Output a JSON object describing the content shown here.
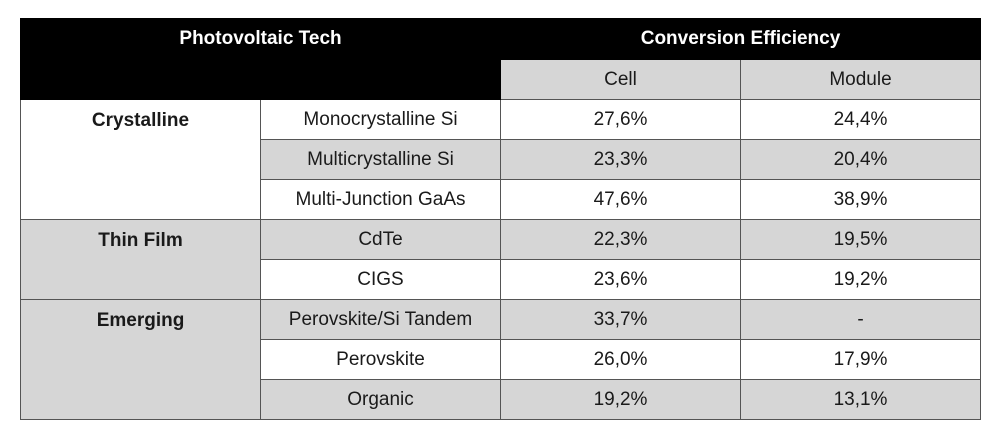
{
  "header": {
    "tech": "Photovoltaic Tech",
    "efficiency": "Conversion Efficiency",
    "cell": "Cell",
    "module": "Module"
  },
  "groups": [
    {
      "name": "Crystalline",
      "rows": [
        {
          "tech": "Monocrystalline Si",
          "cell": "27,6%",
          "module": "24,4%"
        },
        {
          "tech": "Multicrystalline Si",
          "cell": "23,3%",
          "module": "20,4%"
        },
        {
          "tech": "Multi-Junction GaAs",
          "cell": "47,6%",
          "module": "38,9%"
        }
      ]
    },
    {
      "name": "Thin Film",
      "rows": [
        {
          "tech": "CdTe",
          "cell": "22,3%",
          "module": "19,5%"
        },
        {
          "tech": "CIGS",
          "cell": "23,6%",
          "module": "19,2%"
        }
      ]
    },
    {
      "name": "Emerging",
      "rows": [
        {
          "tech": "Perovskite/Si Tandem",
          "cell": "33,7%",
          "module": "-"
        },
        {
          "tech": "Perovskite",
          "cell": "26,0%",
          "module": "17,9%"
        },
        {
          "tech": "Organic",
          "cell": "19,2%",
          "module": "13,1%"
        }
      ]
    }
  ],
  "colors": {
    "header_bg": "#000000",
    "shade": "#d6d6d6",
    "white": "#ffffff"
  }
}
